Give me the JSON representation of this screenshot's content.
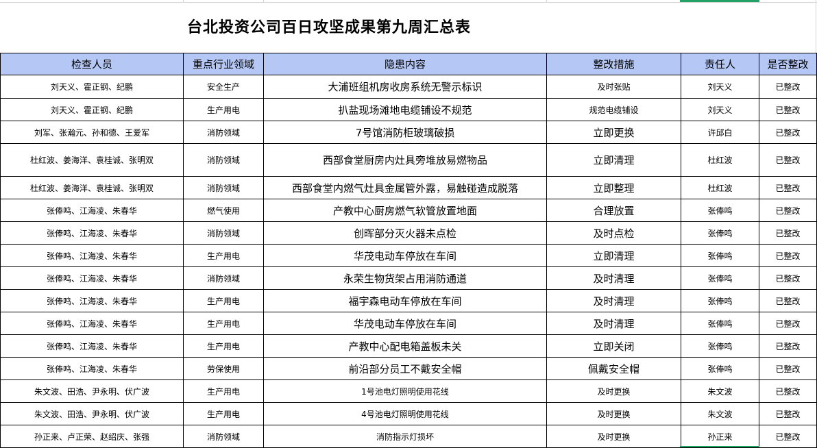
{
  "title": "台北投资公司百日攻坚成果第九周汇总表",
  "colors": {
    "header_bg": "#b4c7f5",
    "selection": "#21a366"
  },
  "headers": [
    "检查人员",
    "重点行业领域",
    "隐患内容",
    "整改措施",
    "责任人",
    "是否整改"
  ],
  "rows": [
    [
      "刘天义、霍正钢、纪鹏",
      "安全生产",
      "大浦班组机房收房系统无警示标识",
      "及时张贴",
      "刘天义",
      "已整改"
    ],
    [
      "刘天义、霍正钢、纪鹏",
      "生产用电",
      "扒盐现场滩地电缆铺设不规范",
      "规范电缆铺设",
      "刘天义",
      "已整改"
    ],
    [
      "刘军、张瀚元、孙和德、王爱军",
      "消防领域",
      "7号馆消防柜玻璃破损",
      "立即更换",
      "许邱白",
      "已整改"
    ],
    [
      "杜红波、姜海洋、袁桂诚、张明双",
      "消防领域",
      "西部食堂厨房内灶具旁堆放易燃物品",
      "立即清理",
      "杜红波",
      "已整改"
    ],
    [
      "杜红波、姜海洋、袁桂诚、张明双",
      "消防领域",
      "西部食堂内燃气灶具金属管外露，易触碰造成脱落",
      "立即整理",
      "杜红波",
      "已整改"
    ],
    [
      "张俸鸣、江海凌、朱春华",
      "燃气使用",
      "产教中心厨房燃气软管放置地面",
      "合理放置",
      "张俸鸣",
      "已整改"
    ],
    [
      "张俸鸣、江海凌、朱春华",
      "消防领域",
      "创晖部分灭火器未点检",
      "及时点检",
      "张俸鸣",
      "已整改"
    ],
    [
      "张俸鸣、江海凌、朱春华",
      "生产用电",
      "华茂电动车停放在车间",
      "立即清理",
      "张俸鸣",
      "已整改"
    ],
    [
      "张俸鸣、江海凌、朱春华",
      "消防领域",
      "永荣生物货架占用消防通道",
      "及时清理",
      "张俸鸣",
      "已整改"
    ],
    [
      "张俸鸣、江海凌、朱春华",
      "生产用电",
      "福宇森电动车停放在车间",
      "及时清理",
      "张俸鸣",
      "已整改"
    ],
    [
      "张俸鸣、江海凌、朱春华",
      "生产用电",
      "华茂电动车停放在车间",
      "及时清理",
      "张俸鸣",
      "已整改"
    ],
    [
      "张俸鸣、江海凌、朱春华",
      "生产用电",
      "产教中心配电箱盖板未关",
      "立即关闭",
      "张俸鸣",
      "已整改"
    ],
    [
      "张俸鸣、江海凌、朱春华",
      "劳保使用",
      "前沿部分员工不戴安全帽",
      "佩戴安全帽",
      "张俸鸣",
      "已整改"
    ],
    [
      "朱文波、田浩、尹永明、伏广波",
      "生产用电",
      "1号池电灯照明使用花线",
      "及时更换",
      "朱文波",
      "已整改"
    ],
    [
      "朱文波、田浩、尹永明、伏广波",
      "生产用电",
      "4号池电灯照明使用花线",
      "及时更换",
      "朱文波",
      "已整改"
    ],
    [
      "孙正来、卢正荣、赵绍庆、张强",
      "消防领域",
      "消防指示灯损坏",
      "及时更换",
      "孙正来",
      "已整改"
    ]
  ]
}
